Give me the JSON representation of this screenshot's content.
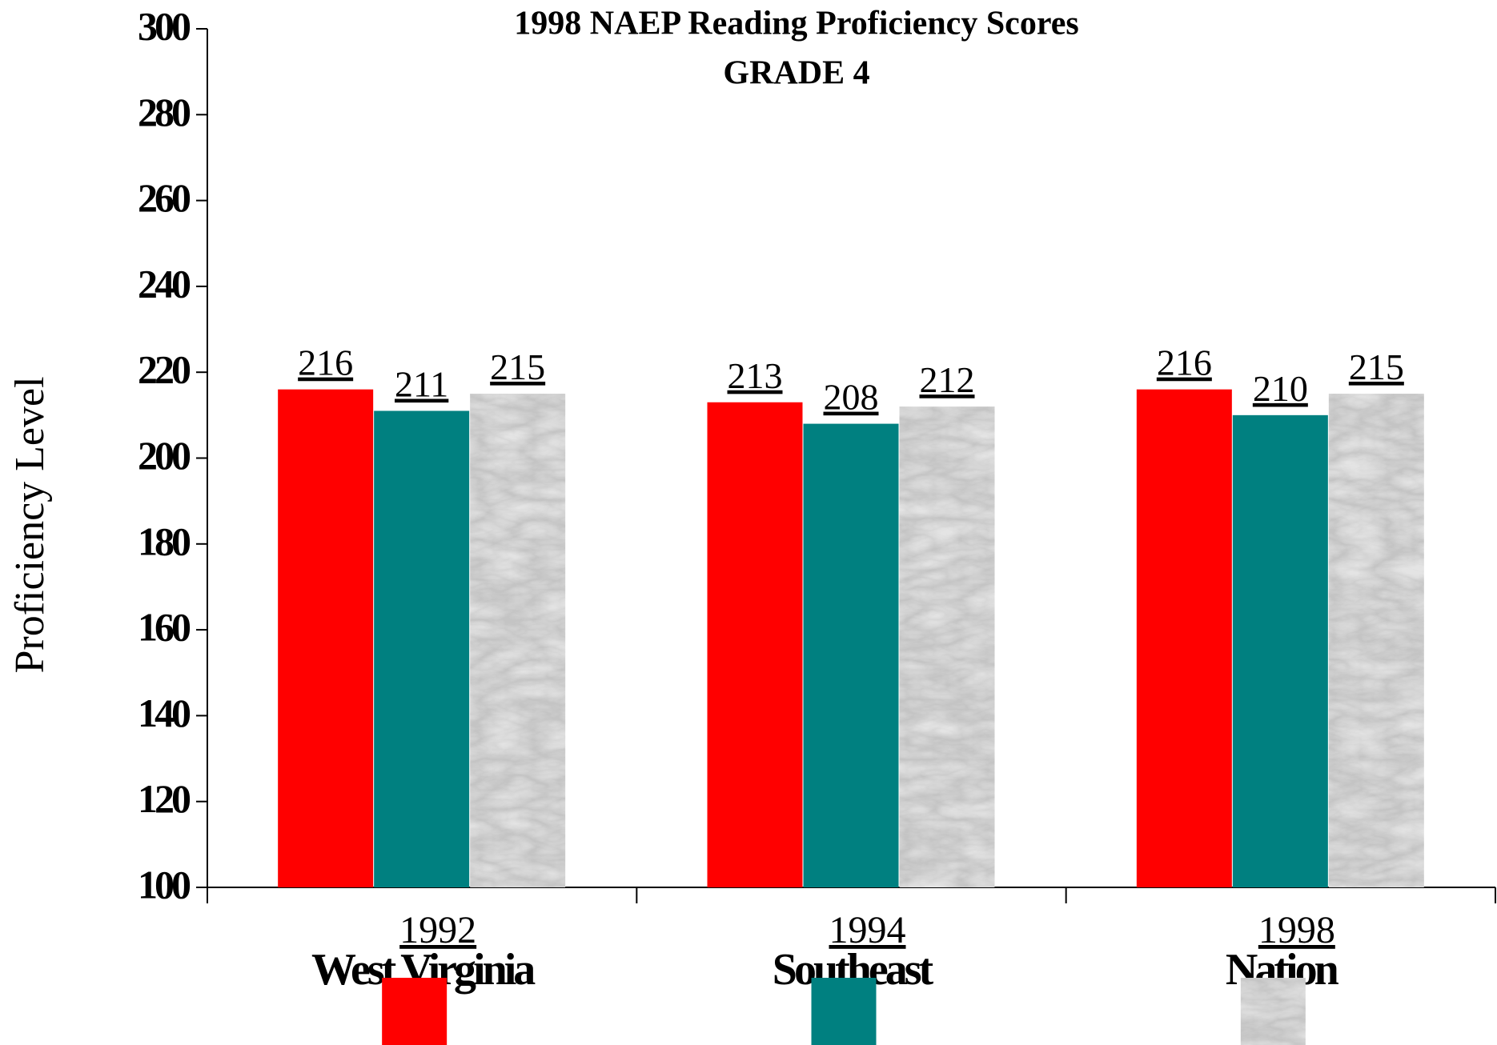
{
  "chart_data": {
    "type": "bar",
    "title": "1998 NAEP Reading Proficiency Scores",
    "subtitle": "GRADE 4",
    "y_label": "Proficiency Level",
    "categories": [
      "1992",
      "1994",
      "1998"
    ],
    "series": [
      {
        "name": "West Virginia",
        "color": "#ff0000",
        "values": [
          216,
          213,
          216
        ]
      },
      {
        "name": "Southeast",
        "color": "#008080",
        "values": [
          211,
          208,
          210
        ]
      },
      {
        "name": "Nation",
        "color": "#dcdcdc",
        "texture": "marble",
        "values": [
          215,
          212,
          215
        ]
      }
    ],
    "ylim": [
      100,
      300
    ],
    "yticks": [
      100,
      120,
      140,
      160,
      180,
      200,
      220,
      240,
      260,
      280,
      300
    ],
    "grid": false
  }
}
